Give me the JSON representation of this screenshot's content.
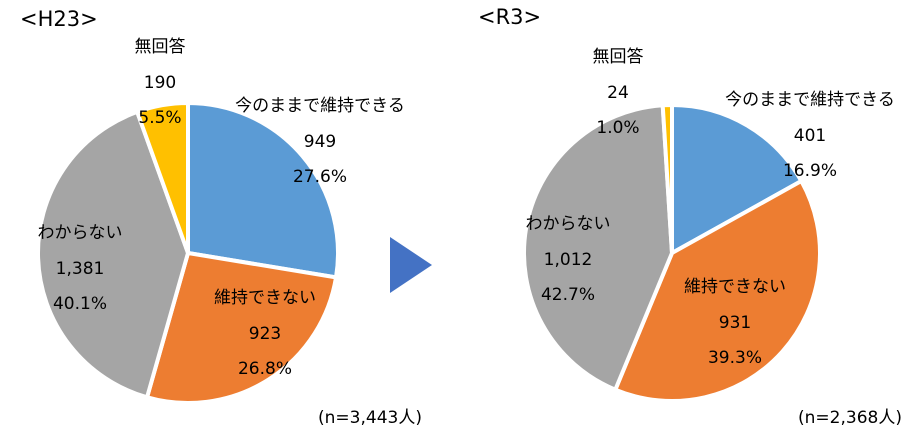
{
  "chart_data": [
    {
      "type": "pie",
      "title": "<H23>",
      "categories": [
        "今のままで維持できる",
        "維持できない",
        "わからない",
        "無回答"
      ],
      "values": [
        27.6,
        26.8,
        40.1,
        5.5
      ],
      "value_labels": [
        "27.6%",
        "26.8%",
        "40.1%",
        "5.5%"
      ],
      "counts": [
        949,
        923,
        1381,
        190
      ],
      "count_labels": [
        "949",
        "923",
        "1,381",
        "190"
      ],
      "colors": [
        "#5b9bd5",
        "#ed7d31",
        "#a5a5a5",
        "#ffc000"
      ],
      "note": "(n=3,443人)"
    },
    {
      "type": "pie",
      "title": "<R3>",
      "categories": [
        "今のままで維持できる",
        "維持できない",
        "わからない",
        "無回答"
      ],
      "values": [
        16.9,
        39.3,
        42.7,
        1.0
      ],
      "value_labels": [
        "16.9%",
        "39.3%",
        "42.7%",
        "1.0%"
      ],
      "counts": [
        401,
        931,
        1012,
        24
      ],
      "count_labels": [
        "401",
        "931",
        "1,012",
        "24"
      ],
      "colors": [
        "#5b9bd5",
        "#ed7d31",
        "#a5a5a5",
        "#ffc000"
      ],
      "note": "(n=2,368人)"
    }
  ]
}
